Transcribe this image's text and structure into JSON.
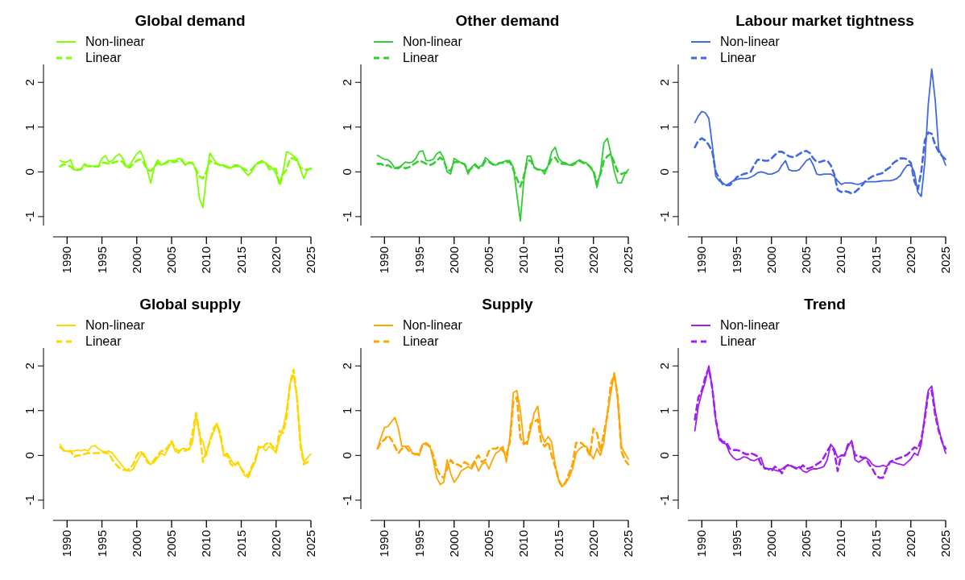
{
  "chart_data": [
    {
      "type": "line",
      "title": "Global demand",
      "legend": "top left",
      "xlim": [
        1988,
        2025
      ],
      "ylim": [
        -1.2,
        2.4
      ],
      "yticks": [
        -1,
        0,
        1,
        2
      ],
      "xticks": [
        1990,
        1995,
        2000,
        2005,
        2010,
        2015,
        2020,
        2025
      ],
      "x": [
        1989,
        1989.5,
        1990,
        1990.5,
        1991,
        1991.5,
        1992,
        1992.5,
        1993,
        1993.5,
        1994,
        1994.5,
        1995,
        1995.5,
        1996,
        1996.5,
        1997,
        1997.5,
        1998,
        1998.5,
        1999,
        1999.5,
        2000,
        2000.5,
        2001,
        2001.5,
        2002,
        2002.5,
        2003,
        2003.5,
        2004,
        2004.5,
        2005,
        2005.5,
        2006,
        2006.5,
        2007,
        2007.5,
        2008,
        2008.5,
        2009,
        2009.5,
        2010,
        2010.5,
        2011,
        2011.5,
        2012,
        2012.5,
        2013,
        2013.5,
        2014,
        2014.5,
        2015,
        2015.5,
        2016,
        2016.5,
        2017,
        2017.5,
        2018,
        2018.5,
        2019,
        2019.5,
        2020,
        2020.5,
        2021,
        2021.5,
        2022,
        2022.5,
        2023,
        2023.5,
        2024,
        2024.5,
        2025
      ],
      "series": [
        {
          "name": "Non-linear",
          "color": "#7fff00",
          "line_style": "solid",
          "values": [
            0.25,
            0.22,
            0.22,
            0.27,
            0.05,
            0.03,
            0.05,
            0.18,
            0.12,
            0.13,
            0.12,
            0.12,
            0.3,
            0.36,
            0.22,
            0.25,
            0.35,
            0.4,
            0.3,
            0.12,
            0.15,
            0.28,
            0.4,
            0.47,
            0.3,
            0.05,
            -0.25,
            0.1,
            0.27,
            0.15,
            0.2,
            0.25,
            0.25,
            0.25,
            0.3,
            0.28,
            0.15,
            0.22,
            0.2,
            0.05,
            -0.6,
            -0.8,
            -0.1,
            0.42,
            0.3,
            0.18,
            0.15,
            0.15,
            0.12,
            0.08,
            0.15,
            0.15,
            0.1,
            0.0,
            -0.08,
            0.0,
            0.15,
            0.22,
            0.25,
            0.2,
            0.05,
            0.08,
            -0.05,
            -0.25,
            0.0,
            0.45,
            0.42,
            0.35,
            0.3,
            0.05,
            -0.15,
            0.05,
            0.08
          ]
        },
        {
          "name": "Linear",
          "color": "#7fff00",
          "line_style": "dashed",
          "values": [
            0.12,
            0.17,
            0.15,
            0.12,
            0.05,
            0.05,
            0.06,
            0.15,
            0.13,
            0.12,
            0.12,
            0.12,
            0.2,
            0.2,
            0.18,
            0.2,
            0.22,
            0.25,
            0.22,
            0.1,
            0.1,
            0.18,
            0.25,
            0.28,
            0.2,
            0.05,
            0.02,
            0.1,
            0.2,
            0.15,
            0.18,
            0.22,
            0.22,
            0.22,
            0.25,
            0.25,
            0.15,
            0.2,
            0.2,
            0.05,
            -0.1,
            -0.15,
            0.0,
            0.25,
            0.2,
            0.18,
            0.15,
            0.13,
            0.1,
            0.08,
            0.13,
            0.13,
            0.1,
            0.05,
            0.02,
            0.05,
            0.15,
            0.2,
            0.22,
            0.2,
            0.12,
            0.1,
            0.05,
            -0.3,
            -0.05,
            0.05,
            0.3,
            0.3,
            0.25,
            0.1,
            0.05,
            0.05,
            0.07
          ]
        }
      ]
    },
    {
      "type": "line",
      "title": "Other demand",
      "legend": "top left",
      "xlim": [
        1988,
        2025
      ],
      "ylim": [
        -1.2,
        2.4
      ],
      "yticks": [
        -1,
        0,
        1,
        2
      ],
      "xticks": [
        1990,
        1995,
        2000,
        2005,
        2010,
        2015,
        2020,
        2025
      ],
      "x": [
        1989,
        1989.5,
        1990,
        1990.5,
        1991,
        1991.5,
        1992,
        1992.5,
        1993,
        1993.5,
        1994,
        1994.5,
        1995,
        1995.5,
        1996,
        1996.5,
        1997,
        1997.5,
        1998,
        1998.5,
        1999,
        1999.5,
        2000,
        2000.5,
        2001,
        2001.5,
        2002,
        2002.5,
        2003,
        2003.5,
        2004,
        2004.5,
        2005,
        2005.5,
        2006,
        2006.5,
        2007,
        2007.5,
        2008,
        2008.5,
        2009,
        2009.5,
        2010,
        2010.5,
        2011,
        2011.5,
        2012,
        2012.5,
        2013,
        2013.5,
        2014,
        2014.5,
        2015,
        2015.5,
        2016,
        2016.5,
        2017,
        2017.5,
        2018,
        2018.5,
        2019,
        2019.5,
        2020,
        2020.5,
        2021,
        2021.5,
        2022,
        2022.5,
        2023,
        2023.5,
        2024,
        2024.5,
        2025
      ],
      "series": [
        {
          "name": "Non-linear",
          "color": "#32cd32",
          "line_style": "solid",
          "values": [
            0.37,
            0.32,
            0.28,
            0.27,
            0.2,
            0.08,
            0.07,
            0.15,
            0.22,
            0.2,
            0.22,
            0.3,
            0.45,
            0.47,
            0.25,
            0.25,
            0.28,
            0.4,
            0.45,
            0.3,
            0.0,
            -0.05,
            0.3,
            0.25,
            0.2,
            0.18,
            -0.05,
            0.1,
            0.18,
            0.1,
            0.15,
            0.32,
            0.25,
            0.18,
            0.15,
            0.2,
            0.22,
            0.25,
            0.25,
            0.1,
            -0.5,
            -1.1,
            -0.2,
            0.35,
            0.35,
            0.1,
            0.05,
            0.05,
            -0.05,
            0.15,
            0.45,
            0.55,
            0.3,
            0.22,
            0.2,
            0.15,
            0.18,
            0.22,
            0.27,
            0.22,
            0.2,
            0.1,
            0.0,
            -0.35,
            0.0,
            0.65,
            0.75,
            0.4,
            0.0,
            -0.25,
            -0.25,
            -0.05,
            0.05
          ]
        },
        {
          "name": "Linear",
          "color": "#32cd32",
          "line_style": "dashed",
          "values": [
            0.18,
            0.18,
            0.13,
            0.15,
            0.1,
            0.08,
            0.1,
            0.12,
            0.08,
            0.1,
            0.15,
            0.2,
            0.25,
            0.22,
            0.18,
            0.15,
            0.18,
            0.25,
            0.32,
            0.25,
            0.05,
            0.02,
            0.22,
            0.22,
            0.2,
            0.17,
            0.02,
            0.08,
            0.15,
            0.08,
            0.12,
            0.25,
            0.22,
            0.17,
            0.15,
            0.2,
            0.2,
            0.22,
            0.22,
            0.05,
            -0.15,
            -0.33,
            -0.1,
            0.25,
            0.25,
            0.1,
            0.05,
            0.05,
            0.02,
            0.12,
            0.3,
            0.32,
            0.2,
            0.18,
            0.18,
            0.15,
            0.15,
            0.2,
            0.25,
            0.2,
            0.18,
            0.12,
            0.02,
            -0.25,
            -0.05,
            0.25,
            0.35,
            0.4,
            0.2,
            0.0,
            -0.05,
            -0.02,
            -0.02
          ]
        }
      ]
    },
    {
      "type": "line",
      "title": "Labour market tightness",
      "legend": "top left",
      "xlim": [
        1988,
        2025
      ],
      "ylim": [
        -1.2,
        2.4
      ],
      "yticks": [
        -1,
        0,
        1,
        2
      ],
      "xticks": [
        1990,
        1995,
        2000,
        2005,
        2010,
        2015,
        2020,
        2025
      ],
      "x": [
        1989,
        1989.5,
        1990,
        1990.5,
        1991,
        1991.5,
        1992,
        1992.5,
        1993,
        1993.5,
        1994,
        1994.5,
        1995,
        1995.5,
        1996,
        1996.5,
        1997,
        1997.5,
        1998,
        1998.5,
        1999,
        1999.5,
        2000,
        2000.5,
        2001,
        2001.5,
        2002,
        2002.5,
        2003,
        2003.5,
        2004,
        2004.5,
        2005,
        2005.5,
        2006,
        2006.5,
        2007,
        2007.5,
        2008,
        2008.5,
        2009,
        2009.5,
        2010,
        2010.5,
        2011,
        2011.5,
        2012,
        2012.5,
        2013,
        2013.5,
        2014,
        2014.5,
        2015,
        2015.5,
        2016,
        2016.5,
        2017,
        2017.5,
        2018,
        2018.5,
        2019,
        2019.5,
        2020,
        2020.5,
        2021,
        2021.5,
        2022,
        2022.5,
        2023,
        2023.5,
        2024,
        2024.5,
        2025
      ],
      "series": [
        {
          "name": "Non-linear",
          "color": "#4169e1",
          "line_style": "solid",
          "values": [
            1.1,
            1.25,
            1.35,
            1.32,
            1.2,
            0.6,
            -0.1,
            -0.2,
            -0.25,
            -0.3,
            -0.25,
            -0.2,
            -0.17,
            -0.15,
            -0.15,
            -0.15,
            -0.12,
            -0.08,
            -0.02,
            0.0,
            -0.02,
            -0.05,
            -0.05,
            -0.02,
            0.02,
            0.15,
            0.25,
            0.05,
            0.02,
            0.02,
            0.05,
            0.15,
            0.25,
            0.3,
            0.15,
            -0.05,
            -0.07,
            -0.05,
            -0.05,
            -0.05,
            -0.1,
            -0.2,
            -0.28,
            -0.25,
            -0.25,
            -0.25,
            -0.27,
            -0.28,
            -0.25,
            -0.22,
            -0.22,
            -0.22,
            -0.22,
            -0.21,
            -0.2,
            -0.2,
            -0.2,
            -0.18,
            -0.15,
            -0.08,
            0.05,
            0.15,
            0.15,
            0.0,
            -0.45,
            -0.55,
            0.2,
            1.5,
            2.3,
            1.6,
            0.5,
            0.35,
            0.15
          ]
        },
        {
          "name": "Linear",
          "color": "#4169e1",
          "line_style": "dashed",
          "values": [
            0.55,
            0.7,
            0.75,
            0.7,
            0.6,
            0.45,
            0.0,
            -0.15,
            -0.28,
            -0.3,
            -0.3,
            -0.22,
            -0.12,
            -0.08,
            -0.05,
            -0.03,
            0.0,
            0.15,
            0.27,
            0.27,
            0.25,
            0.25,
            0.3,
            0.38,
            0.45,
            0.45,
            0.4,
            0.35,
            0.33,
            0.35,
            0.4,
            0.45,
            0.47,
            0.42,
            0.3,
            0.22,
            0.22,
            0.25,
            0.25,
            0.15,
            -0.05,
            -0.4,
            -0.45,
            -0.43,
            -0.45,
            -0.48,
            -0.45,
            -0.38,
            -0.3,
            -0.2,
            -0.15,
            -0.1,
            -0.07,
            -0.05,
            -0.02,
            0.05,
            0.1,
            0.2,
            0.25,
            0.3,
            0.3,
            0.28,
            0.2,
            -0.2,
            -0.4,
            0.0,
            0.7,
            0.88,
            0.85,
            0.6,
            0.45,
            0.35,
            0.28
          ]
        }
      ]
    },
    {
      "type": "line",
      "title": "Global supply",
      "legend": "top left",
      "xlim": [
        1988,
        2025
      ],
      "ylim": [
        -1.2,
        2.4
      ],
      "yticks": [
        -1,
        0,
        1,
        2
      ],
      "xticks": [
        1990,
        1995,
        2000,
        2005,
        2010,
        2015,
        2020,
        2025
      ],
      "x": [
        1989,
        1989.5,
        1990,
        1990.5,
        1991,
        1991.5,
        1992,
        1992.5,
        1993,
        1993.5,
        1994,
        1994.5,
        1995,
        1995.5,
        1996,
        1996.5,
        1997,
        1997.5,
        1998,
        1998.5,
        1999,
        1999.5,
        2000,
        2000.5,
        2001,
        2001.5,
        2002,
        2002.5,
        2003,
        2003.5,
        2004,
        2004.5,
        2005,
        2005.5,
        2006,
        2006.5,
        2007,
        2007.5,
        2008,
        2008.5,
        2009,
        2009.5,
        2010,
        2010.5,
        2011,
        2011.5,
        2012,
        2012.5,
        2013,
        2013.5,
        2014,
        2014.5,
        2015,
        2015.5,
        2016,
        2016.5,
        2017,
        2017.5,
        2018,
        2018.5,
        2019,
        2019.5,
        2020,
        2020.5,
        2021,
        2021.5,
        2022,
        2022.5,
        2023,
        2023.5,
        2024,
        2024.5,
        2025
      ],
      "series": [
        {
          "name": "Non-linear",
          "color": "#ffd700",
          "line_style": "solid",
          "values": [
            0.25,
            0.1,
            0.1,
            0.1,
            0.1,
            0.12,
            0.1,
            0.13,
            0.1,
            0.2,
            0.22,
            0.15,
            0.1,
            0.08,
            0.1,
            0.05,
            -0.05,
            -0.15,
            -0.25,
            -0.33,
            -0.35,
            -0.3,
            -0.15,
            0.0,
            0.05,
            -0.1,
            -0.2,
            -0.15,
            -0.05,
            0.05,
            0.0,
            0.15,
            0.3,
            0.1,
            0.05,
            0.15,
            0.15,
            0.12,
            0.3,
            0.9,
            0.45,
            0.3,
            0.0,
            0.35,
            0.5,
            0.72,
            0.4,
            0.0,
            0.05,
            -0.1,
            -0.2,
            -0.15,
            -0.3,
            -0.45,
            -0.5,
            -0.3,
            -0.15,
            0.15,
            0.2,
            0.1,
            0.2,
            0.15,
            0.05,
            0.4,
            0.6,
            1.0,
            1.6,
            1.8,
            1.3,
            0.3,
            -0.15,
            -0.05,
            0.03
          ]
        },
        {
          "name": "Linear",
          "color": "#ffd700",
          "line_style": "dashed",
          "values": [
            0.18,
            0.12,
            0.08,
            0.1,
            -0.03,
            0.0,
            0.0,
            0.03,
            0.05,
            0.05,
            0.05,
            0.05,
            0.08,
            0.05,
            0.05,
            -0.1,
            -0.2,
            -0.28,
            -0.32,
            -0.33,
            -0.3,
            -0.2,
            0.0,
            0.1,
            0.0,
            -0.15,
            -0.2,
            -0.1,
            0.0,
            0.1,
            0.1,
            0.2,
            0.32,
            0.15,
            0.1,
            0.13,
            0.1,
            0.15,
            0.5,
            0.95,
            0.5,
            -0.15,
            0.1,
            0.3,
            0.6,
            0.7,
            0.5,
            0.0,
            0.0,
            -0.2,
            -0.25,
            -0.15,
            -0.3,
            -0.4,
            -0.45,
            -0.25,
            -0.1,
            0.2,
            0.15,
            0.25,
            0.3,
            0.2,
            0.1,
            0.55,
            0.5,
            0.85,
            1.6,
            1.92,
            1.3,
            0.2,
            -0.2,
            -0.15,
            -0.1
          ]
        }
      ]
    },
    {
      "type": "line",
      "title": "Supply",
      "legend": "top left",
      "xlim": [
        1988,
        2025
      ],
      "ylim": [
        -1.2,
        2.4
      ],
      "yticks": [
        -1,
        0,
        1,
        2
      ],
      "xticks": [
        1990,
        1995,
        2000,
        2005,
        2010,
        2015,
        2020,
        2025
      ],
      "x": [
        1989,
        1989.5,
        1990,
        1990.5,
        1991,
        1991.5,
        1992,
        1992.5,
        1993,
        1993.5,
        1994,
        1994.5,
        1995,
        1995.5,
        1996,
        1996.5,
        1997,
        1997.5,
        1998,
        1998.5,
        1999,
        1999.5,
        2000,
        2000.5,
        2001,
        2001.5,
        2002,
        2002.5,
        2003,
        2003.5,
        2004,
        2004.5,
        2005,
        2005.5,
        2006,
        2006.5,
        2007,
        2007.5,
        2008,
        2008.5,
        2009,
        2009.5,
        2010,
        2010.5,
        2011,
        2011.5,
        2012,
        2012.5,
        2013,
        2013.5,
        2014,
        2014.5,
        2015,
        2015.5,
        2016,
        2016.5,
        2017,
        2017.5,
        2018,
        2018.5,
        2019,
        2019.5,
        2020,
        2020.5,
        2021,
        2021.5,
        2022,
        2022.5,
        2023,
        2023.5,
        2024,
        2024.5,
        2025
      ],
      "series": [
        {
          "name": "Non-linear",
          "color": "#ffa500",
          "line_style": "solid",
          "values": [
            0.15,
            0.4,
            0.62,
            0.65,
            0.75,
            0.85,
            0.6,
            0.2,
            0.2,
            0.2,
            0.05,
            0.03,
            0.0,
            0.25,
            0.28,
            0.22,
            -0.1,
            -0.5,
            -0.65,
            -0.6,
            -0.1,
            -0.4,
            -0.6,
            -0.5,
            -0.35,
            -0.3,
            -0.25,
            -0.3,
            -0.15,
            -0.35,
            -0.2,
            -0.15,
            -0.3,
            -0.1,
            0.05,
            0.1,
            0.2,
            -0.15,
            0.4,
            1.4,
            1.45,
            1.0,
            0.3,
            0.25,
            0.6,
            0.95,
            1.1,
            0.5,
            0.3,
            0.42,
            0.3,
            -0.2,
            -0.55,
            -0.7,
            -0.62,
            -0.5,
            -0.3,
            0.05,
            0.15,
            0.2,
            0.2,
            0.05,
            -0.08,
            0.15,
            0.0,
            0.3,
            0.95,
            1.4,
            1.85,
            1.2,
            0.2,
            0.05,
            -0.08
          ]
        },
        {
          "name": "Linear",
          "color": "#ffa500",
          "line_style": "dashed",
          "values": [
            0.15,
            0.3,
            0.35,
            0.45,
            0.35,
            0.2,
            0.05,
            0.15,
            0.2,
            0.1,
            0.05,
            0.02,
            0.05,
            0.25,
            0.25,
            0.2,
            0.0,
            -0.3,
            -0.45,
            -0.5,
            -0.3,
            -0.1,
            -0.2,
            -0.2,
            -0.25,
            -0.15,
            -0.2,
            -0.25,
            -0.1,
            0.0,
            -0.15,
            -0.1,
            0.1,
            0.15,
            0.15,
            0.2,
            0.1,
            0.0,
            0.3,
            1.2,
            1.3,
            0.4,
            0.25,
            0.3,
            0.7,
            0.75,
            0.8,
            0.3,
            0.2,
            0.3,
            0.0,
            -0.25,
            -0.55,
            -0.7,
            -0.6,
            -0.4,
            -0.2,
            0.28,
            0.3,
            0.25,
            0.15,
            0.0,
            0.6,
            0.5,
            0.1,
            0.5,
            0.9,
            1.6,
            1.8,
            1.3,
            0.1,
            -0.1,
            -0.2
          ]
        }
      ]
    },
    {
      "type": "line",
      "title": "Trend",
      "legend": "top left",
      "xlim": [
        1988,
        2025
      ],
      "ylim": [
        -1.2,
        2.4
      ],
      "yticks": [
        -1,
        0,
        1,
        2
      ],
      "xticks": [
        1990,
        1995,
        2000,
        2005,
        2010,
        2015,
        2020,
        2025
      ],
      "x": [
        1989,
        1989.5,
        1990,
        1990.5,
        1991,
        1991.5,
        1992,
        1992.5,
        1993,
        1993.5,
        1994,
        1994.5,
        1995,
        1995.5,
        1996,
        1996.5,
        1997,
        1997.5,
        1998,
        1998.5,
        1999,
        1999.5,
        2000,
        2000.5,
        2001,
        2001.5,
        2002,
        2002.5,
        2003,
        2003.5,
        2004,
        2004.5,
        2005,
        2005.5,
        2006,
        2006.5,
        2007,
        2007.5,
        2008,
        2008.5,
        2009,
        2009.5,
        2010,
        2010.5,
        2011,
        2011.5,
        2012,
        2012.5,
        2013,
        2013.5,
        2014,
        2014.5,
        2015,
        2015.5,
        2016,
        2016.5,
        2017,
        2017.5,
        2018,
        2018.5,
        2019,
        2019.5,
        2020,
        2020.5,
        2021,
        2021.5,
        2022,
        2022.5,
        2023,
        2023.5,
        2024,
        2024.5,
        2025
      ],
      "series": [
        {
          "name": "Non-linear",
          "color": "#a020f0",
          "line_style": "solid",
          "values": [
            0.55,
            1.1,
            1.4,
            1.65,
            2.0,
            1.5,
            0.8,
            0.35,
            0.28,
            0.25,
            0.05,
            -0.05,
            -0.1,
            -0.08,
            -0.03,
            -0.05,
            -0.1,
            -0.12,
            -0.08,
            -0.05,
            -0.3,
            -0.3,
            -0.3,
            -0.33,
            -0.35,
            -0.3,
            -0.25,
            -0.22,
            -0.25,
            -0.3,
            -0.25,
            -0.35,
            -0.38,
            -0.33,
            -0.3,
            -0.3,
            -0.28,
            -0.25,
            -0.1,
            0.25,
            0.15,
            -0.05,
            0.0,
            0.02,
            0.2,
            0.33,
            -0.1,
            -0.15,
            -0.1,
            -0.05,
            -0.1,
            -0.2,
            -0.25,
            -0.25,
            -0.22,
            -0.25,
            -0.15,
            -0.15,
            -0.18,
            -0.2,
            -0.22,
            -0.15,
            -0.08,
            0.05,
            0.0,
            0.25,
            0.9,
            1.45,
            1.55,
            1.0,
            0.6,
            0.3,
            0.05
          ]
        },
        {
          "name": "Linear",
          "color": "#a020f0",
          "line_style": "dashed",
          "values": [
            0.8,
            1.3,
            1.45,
            1.75,
            1.95,
            1.5,
            0.8,
            0.4,
            0.3,
            0.3,
            0.15,
            0.12,
            0.12,
            0.1,
            0.05,
            0.02,
            0.05,
            0.02,
            -0.02,
            -0.2,
            -0.28,
            -0.3,
            -0.35,
            -0.25,
            -0.3,
            -0.4,
            -0.25,
            -0.2,
            -0.25,
            -0.28,
            -0.3,
            -0.22,
            -0.3,
            -0.28,
            -0.25,
            -0.2,
            -0.15,
            -0.05,
            0.1,
            0.22,
            0.1,
            -0.35,
            0.0,
            0.0,
            0.25,
            0.3,
            0.0,
            0.0,
            -0.05,
            -0.05,
            -0.2,
            -0.3,
            -0.45,
            -0.5,
            -0.5,
            -0.3,
            -0.15,
            -0.1,
            -0.08,
            -0.05,
            -0.02,
            0.02,
            0.1,
            0.18,
            0.15,
            0.35,
            0.8,
            1.4,
            1.45,
            0.9,
            0.55,
            0.3,
            0.15
          ]
        }
      ]
    }
  ]
}
